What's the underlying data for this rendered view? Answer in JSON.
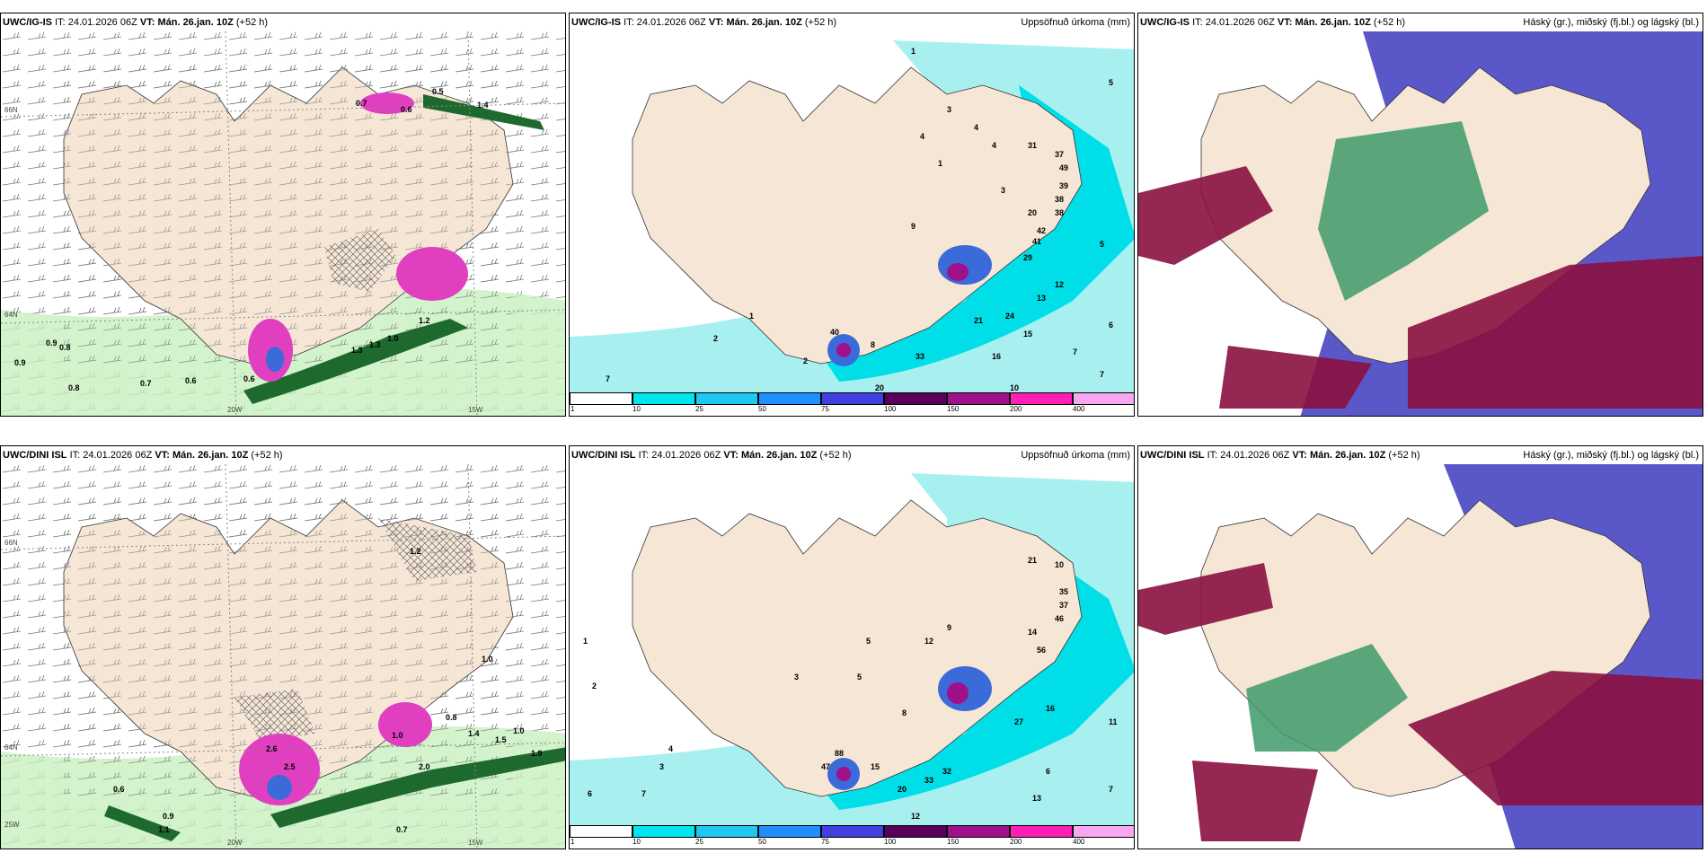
{
  "panels": [
    {
      "id": "p1",
      "source": "UWC/IG-IS",
      "it_label": "IT:",
      "it_value": "24.01.2026 06Z",
      "vt_label": "VT:",
      "vt_value": "Mán. 26.jan. 10Z",
      "lead": "(+52 h)",
      "title": ""
    },
    {
      "id": "p2",
      "source": "UWC/IG-IS",
      "it_label": "IT:",
      "it_value": "24.01.2026 06Z",
      "vt_label": "VT:",
      "vt_value": "Mán. 26.jan. 10Z",
      "lead": "(+52 h)",
      "title": "Uppsöfnuð úrkoma (mm)"
    },
    {
      "id": "p3",
      "source": "UWC/IG-IS",
      "it_label": "IT:",
      "it_value": "24.01.2026 06Z",
      "vt_label": "VT:",
      "vt_value": "Mán. 26.jan. 10Z",
      "lead": "(+52 h)",
      "title": "Háský (gr.), miðský (fj.bl.) og lágský (bl.)"
    },
    {
      "id": "p4",
      "source": "UWC/DINI ISL",
      "it_label": "IT:",
      "it_value": "24.01.2026 06Z",
      "vt_label": "VT:",
      "vt_value": "Mán. 26.jan. 10Z",
      "lead": "(+52 h)",
      "title": ""
    },
    {
      "id": "p5",
      "source": "UWC/DINI ISL",
      "it_label": "IT:",
      "it_value": "24.01.2026 06Z",
      "vt_label": "VT:",
      "vt_value": "Mán. 26.jan. 10Z",
      "lead": "(+52 h)",
      "title": "Uppsöfnuð úrkoma (mm)"
    },
    {
      "id": "p6",
      "source": "UWC/DINI ISL",
      "it_label": "IT:",
      "it_value": "24.01.2026 06Z",
      "vt_label": "VT:",
      "vt_value": "Mán. 26.jan. 10Z",
      "lead": "(+52 h)",
      "title": "Háský (gr.), miðský (fj.bl.) og lágský (bl.)"
    }
  ],
  "axis_labels": {
    "lon_20w": "20W",
    "lon_15w": "15W",
    "lat_66n": "66N",
    "lat_64n": "64N",
    "lon_25w": "25W"
  },
  "colorbar": {
    "ticks": [
      "1",
      "10",
      "25",
      "50",
      "75",
      "100",
      "150",
      "200",
      "400"
    ],
    "colors": [
      "#ffffff",
      "#00e5ee",
      "#1ec8f0",
      "#1e90ff",
      "#4040e0",
      "#5a005a",
      "#a0108a",
      "#ff1fb4",
      "#f8a8f0"
    ]
  },
  "colors": {
    "land": "#f5e6d6",
    "sea_light": "#a8f0f0",
    "sea_mid": "#00dfe8",
    "precip_blue": "#3a6bd8",
    "precip_dark": "#4a0050",
    "precip_pink": "#e040c0",
    "wind_green_light": "#c8f0c0",
    "wind_green_dark": "#1e6a2e",
    "high_cloud": "#3e9a6a",
    "mid_cloud": "#5a58c8",
    "low_cloud": "#8a1040"
  },
  "wind_values_p1": [
    "0.9",
    "0.8",
    "0.7",
    "0.6",
    "0.8",
    "0.6",
    "0.9",
    "1.0",
    "1.3",
    "1.3",
    "1.4",
    "1.2",
    "0.5",
    "0.6",
    "0.7"
  ],
  "wind_values_p4": [
    "0.6",
    "0.9",
    "1.1",
    "0.7",
    "1.0",
    "2.6",
    "2.5",
    "1.4",
    "2.0",
    "1.0",
    "1.2",
    "1.5",
    "0.8",
    "1.0",
    "1.9"
  ],
  "precip_values_p2": [
    "1",
    "2",
    "4",
    "1",
    "3",
    "5",
    "1",
    "2",
    "3",
    "4",
    "4",
    "7",
    "9",
    "40",
    "8",
    "21",
    "33",
    "20",
    "16",
    "24",
    "15",
    "13",
    "12",
    "31",
    "37",
    "49",
    "39",
    "42",
    "41",
    "38",
    "29",
    "20",
    "38",
    "5",
    "6",
    "7",
    "7",
    "10"
  ],
  "precip_values_p5": [
    "3",
    "2",
    "1",
    "4",
    "5",
    "6",
    "7",
    "3",
    "12",
    "9",
    "14",
    "46",
    "35",
    "37",
    "21",
    "10",
    "56",
    "88",
    "15",
    "27",
    "32",
    "33",
    "20",
    "12",
    "11",
    "16",
    "8",
    "13",
    "7",
    "6",
    "47",
    "5"
  ]
}
